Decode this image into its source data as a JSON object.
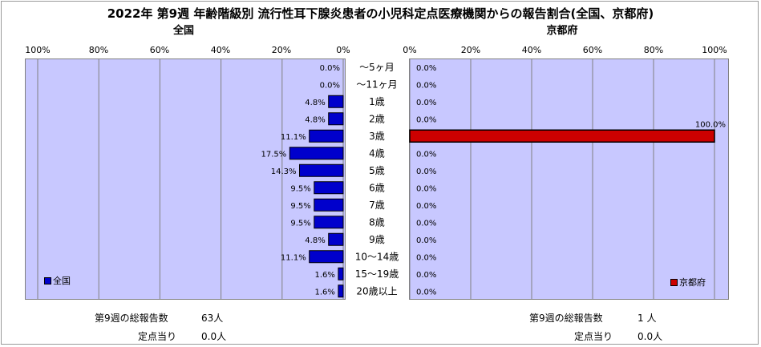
{
  "title": "2022年 第9週 年齢階級別 流行性耳下腺炎患者の小児科定点医療機関からの報告割合(全国、京都府)",
  "axis_ticks_left": [
    "100%",
    "80%",
    "60%",
    "40%",
    "20%",
    "0%"
  ],
  "axis_ticks_right": [
    "0%",
    "20%",
    "40%",
    "60%",
    "80%",
    "100%"
  ],
  "colors": {
    "national_bar": "#0000cc",
    "kyoto_bar": "#cc0000",
    "plot_bg": "#c8c8ff"
  },
  "chart_data": [
    {
      "type": "bar",
      "orientation": "horizontal",
      "title": "全国",
      "categories": [
        "～5ヶ月",
        "～11ヶ月",
        "1歳",
        "2歳",
        "3歳",
        "4歳",
        "5歳",
        "6歳",
        "7歳",
        "8歳",
        "9歳",
        "10～14歳",
        "15～19歳",
        "20歳以上"
      ],
      "series": [
        {
          "name": "全国",
          "values": [
            0.0,
            0.0,
            4.8,
            4.8,
            11.1,
            17.5,
            14.3,
            9.5,
            9.5,
            9.5,
            4.8,
            11.1,
            1.6,
            1.6
          ]
        }
      ],
      "labels": [
        "0.0%",
        "0.0%",
        "4.8%",
        "4.8%",
        "11.1%",
        "17.5%",
        "14.3%",
        "9.5%",
        "9.5%",
        "9.5%",
        "4.8%",
        "11.1%",
        "1.6%",
        "1.6%"
      ],
      "xlim": [
        0,
        100
      ],
      "direction": "reversed",
      "legend": "bottom-left"
    },
    {
      "type": "bar",
      "orientation": "horizontal",
      "title": "京都府",
      "categories": [
        "～5ヶ月",
        "～11ヶ月",
        "1歳",
        "2歳",
        "3歳",
        "4歳",
        "5歳",
        "6歳",
        "7歳",
        "8歳",
        "9歳",
        "10～14歳",
        "15～19歳",
        "20歳以上"
      ],
      "series": [
        {
          "name": "京都府",
          "values": [
            0.0,
            0.0,
            0.0,
            0.0,
            100.0,
            0.0,
            0.0,
            0.0,
            0.0,
            0.0,
            0.0,
            0.0,
            0.0,
            0.0
          ]
        }
      ],
      "labels": [
        "0.0%",
        "0.0%",
        "0.0%",
        "0.0%",
        "100.0%",
        "0.0%",
        "0.0%",
        "0.0%",
        "0.0%",
        "0.0%",
        "0.0%",
        "0.0%",
        "0.0%",
        "0.0%"
      ],
      "xlim": [
        0,
        100
      ],
      "legend": "bottom-right"
    }
  ],
  "summary": {
    "national": {
      "total_label": "第9週の総報告数",
      "total_value": "63人",
      "per_label": "定点当り",
      "per_value": "0.0人"
    },
    "kyoto": {
      "total_label": "第9週の総報告数",
      "total_value": "1 人",
      "per_label": "定点当り",
      "per_value": "0.0人"
    }
  }
}
